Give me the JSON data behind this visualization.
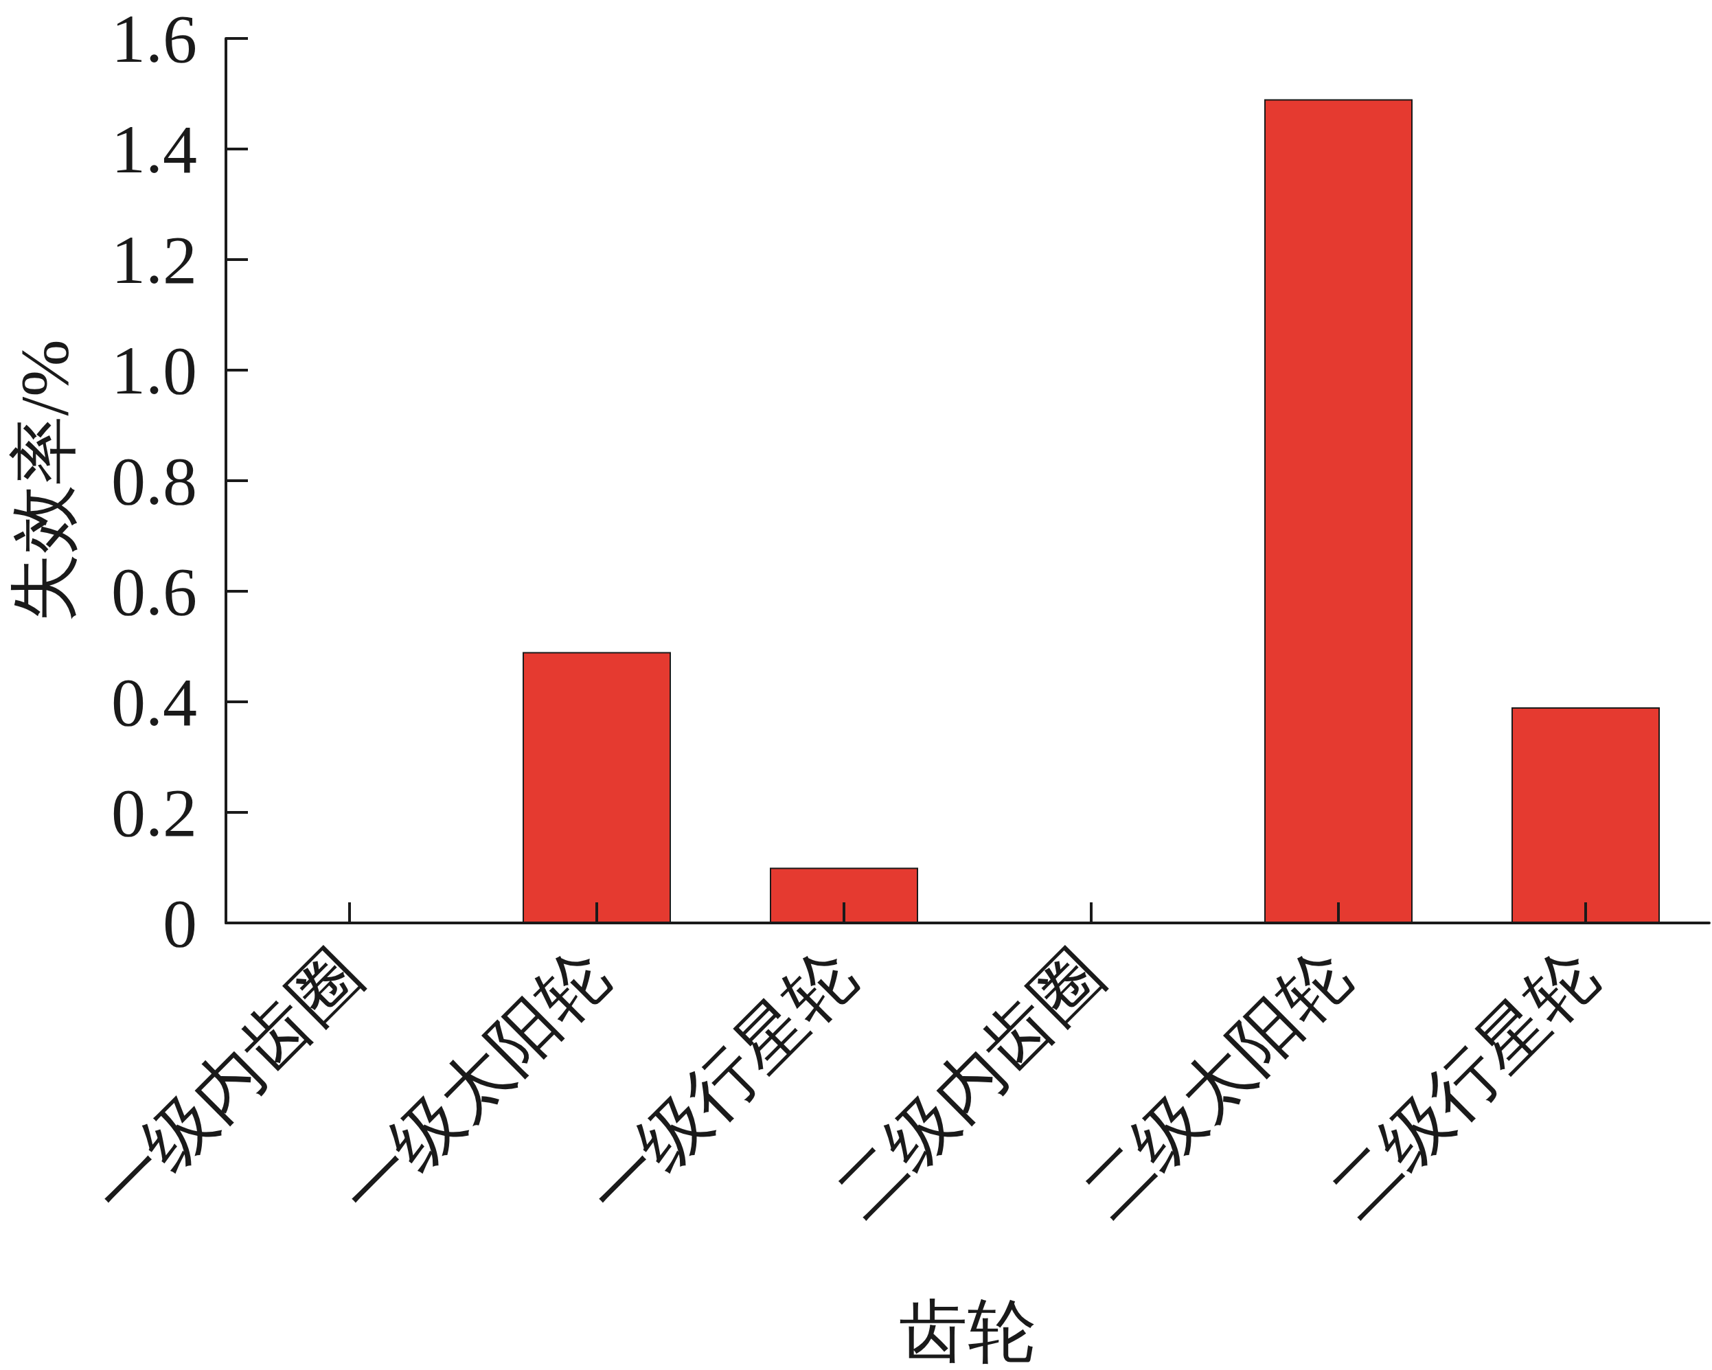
{
  "chart_data": {
    "type": "bar",
    "xlabel": "齿轮",
    "ylabel": "失效率/%",
    "categories": [
      "一级内齿圈",
      "一级太阳轮",
      "一级行星轮",
      "二级内齿圈",
      "二级太阳轮",
      "二级行星轮"
    ],
    "values": [
      0,
      0.49,
      0.1,
      0,
      1.49,
      0.39
    ],
    "color": "#e53a30",
    "ylim": [
      0,
      1.6
    ],
    "yticks": [
      0,
      0.2,
      0.4,
      0.6,
      0.8,
      {
        "value": 1,
        "label": "1.0"
      },
      1.2,
      1.4,
      1.6
    ],
    "grid": false
  }
}
